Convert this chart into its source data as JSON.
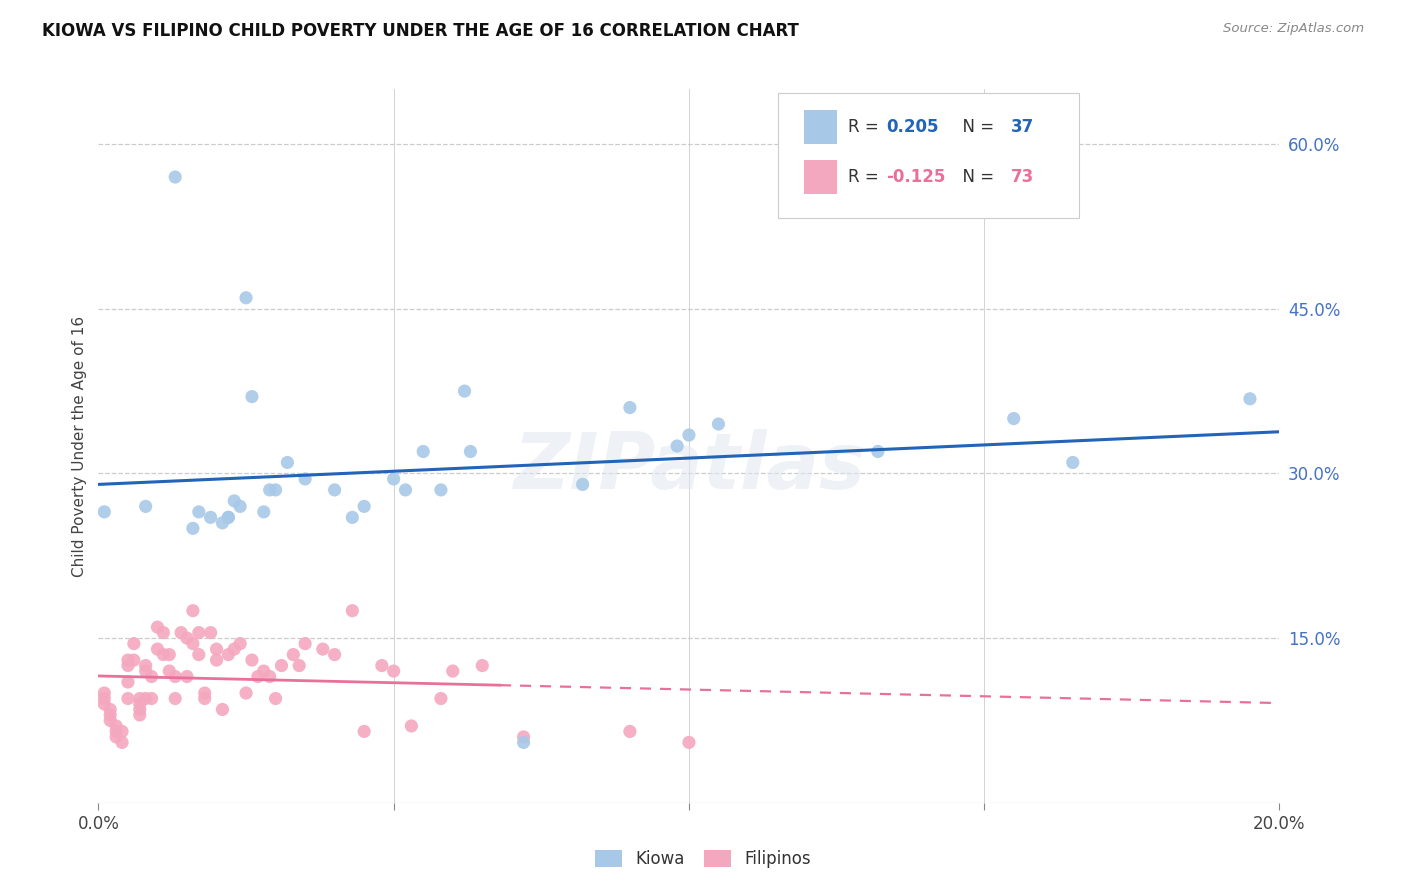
{
  "title": "KIOWA VS FILIPINO CHILD POVERTY UNDER THE AGE OF 16 CORRELATION CHART",
  "source": "Source: ZipAtlas.com",
  "ylabel": "Child Poverty Under the Age of 16",
  "xlim": [
    0.0,
    0.2
  ],
  "ylim": [
    0.0,
    0.65
  ],
  "xtick_vals": [
    0.0,
    0.05,
    0.1,
    0.15,
    0.2
  ],
  "xtick_labels": [
    "0.0%",
    "",
    "",
    "",
    "20.0%"
  ],
  "ytick_vals": [
    0.15,
    0.3,
    0.45,
    0.6
  ],
  "ytick_labels": [
    "15.0%",
    "30.0%",
    "45.0%",
    "60.0%"
  ],
  "legend_r_kiowa": "0.205",
  "legend_n_kiowa": "37",
  "legend_r_filipino": "-0.125",
  "legend_n_filipino": "73",
  "kiowa_color": "#a8c8e8",
  "filipino_color": "#f4a8c0",
  "kiowa_line_color": "#2264b8",
  "filipino_line_color": "#e8709a",
  "tick_color": "#4472c4",
  "watermark": "ZIPatlas",
  "bg_color": "#ffffff",
  "kiowa_x": [
    0.001,
    0.008,
    0.013,
    0.016,
    0.017,
    0.019,
    0.021,
    0.022,
    0.022,
    0.023,
    0.024,
    0.025,
    0.026,
    0.028,
    0.029,
    0.03,
    0.032,
    0.035,
    0.04,
    0.043,
    0.045,
    0.05,
    0.052,
    0.055,
    0.058,
    0.062,
    0.063,
    0.072,
    0.082,
    0.09,
    0.098,
    0.1,
    0.105,
    0.132,
    0.155,
    0.165,
    0.195
  ],
  "kiowa_y": [
    0.265,
    0.27,
    0.57,
    0.25,
    0.265,
    0.26,
    0.255,
    0.26,
    0.26,
    0.275,
    0.27,
    0.46,
    0.37,
    0.265,
    0.285,
    0.285,
    0.31,
    0.295,
    0.285,
    0.26,
    0.27,
    0.295,
    0.285,
    0.32,
    0.285,
    0.375,
    0.32,
    0.055,
    0.29,
    0.36,
    0.325,
    0.335,
    0.345,
    0.32,
    0.35,
    0.31,
    0.368
  ],
  "filipino_x": [
    0.001,
    0.001,
    0.001,
    0.002,
    0.002,
    0.002,
    0.003,
    0.003,
    0.003,
    0.004,
    0.004,
    0.005,
    0.005,
    0.005,
    0.005,
    0.006,
    0.006,
    0.007,
    0.007,
    0.007,
    0.007,
    0.008,
    0.008,
    0.008,
    0.009,
    0.009,
    0.01,
    0.01,
    0.011,
    0.011,
    0.012,
    0.012,
    0.013,
    0.013,
    0.014,
    0.015,
    0.015,
    0.016,
    0.016,
    0.017,
    0.017,
    0.018,
    0.018,
    0.019,
    0.02,
    0.02,
    0.021,
    0.022,
    0.023,
    0.024,
    0.025,
    0.026,
    0.027,
    0.028,
    0.029,
    0.03,
    0.031,
    0.033,
    0.034,
    0.035,
    0.038,
    0.04,
    0.043,
    0.045,
    0.048,
    0.05,
    0.053,
    0.058,
    0.06,
    0.065,
    0.072,
    0.09,
    0.1
  ],
  "filipino_y": [
    0.1,
    0.095,
    0.09,
    0.085,
    0.08,
    0.075,
    0.07,
    0.065,
    0.06,
    0.065,
    0.055,
    0.13,
    0.125,
    0.11,
    0.095,
    0.145,
    0.13,
    0.095,
    0.09,
    0.085,
    0.08,
    0.125,
    0.12,
    0.095,
    0.115,
    0.095,
    0.16,
    0.14,
    0.135,
    0.155,
    0.135,
    0.12,
    0.115,
    0.095,
    0.155,
    0.15,
    0.115,
    0.145,
    0.175,
    0.155,
    0.135,
    0.1,
    0.095,
    0.155,
    0.13,
    0.14,
    0.085,
    0.135,
    0.14,
    0.145,
    0.1,
    0.13,
    0.115,
    0.12,
    0.115,
    0.095,
    0.125,
    0.135,
    0.125,
    0.145,
    0.14,
    0.135,
    0.175,
    0.065,
    0.125,
    0.12,
    0.07,
    0.095,
    0.12,
    0.125,
    0.06,
    0.065,
    0.055
  ]
}
